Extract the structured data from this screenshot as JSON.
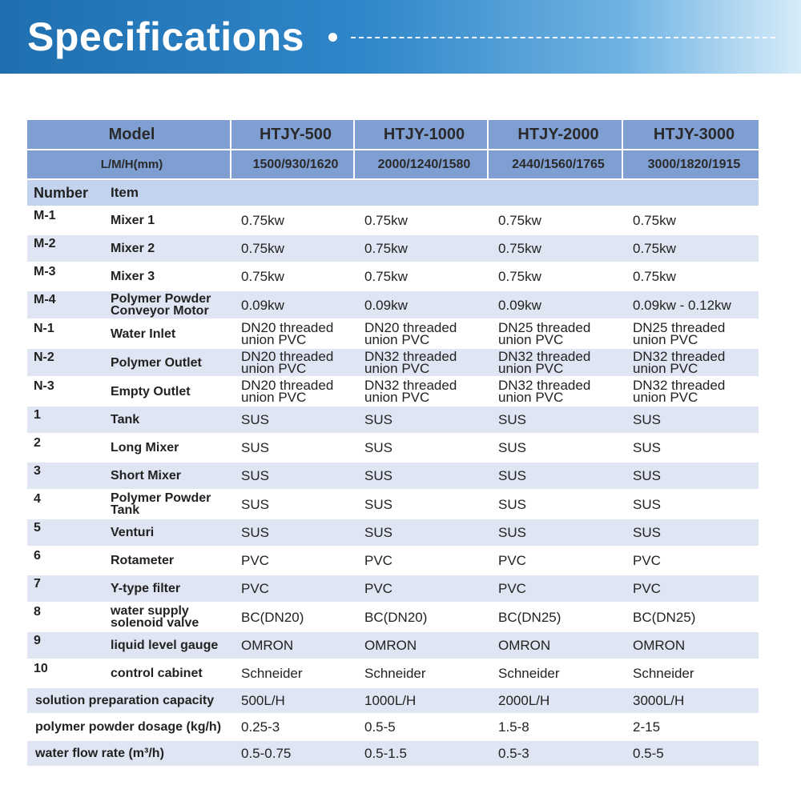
{
  "banner": {
    "title": "Specifications"
  },
  "header": {
    "model_label": "Model",
    "models": [
      "HTJY-500",
      "HTJY-1000",
      "HTJY-2000",
      "HTJY-3000"
    ],
    "lmh_label": "L/M/H(mm)",
    "lmh": [
      "1500/930/1620",
      "2000/1240/1580",
      "2440/1560/1765",
      "3000/1820/1915"
    ],
    "number_label": "Number",
    "item_label": "Item"
  },
  "rows": [
    {
      "num": "M-1",
      "item": "Mixer 1",
      "v": [
        "0.75kw",
        "0.75kw",
        "0.75kw",
        "0.75kw"
      ]
    },
    {
      "num": "M-2",
      "item": "Mixer 2",
      "v": [
        "0.75kw",
        "0.75kw",
        "0.75kw",
        "0.75kw"
      ]
    },
    {
      "num": "M-3",
      "item": "Mixer 3",
      "v": [
        "0.75kw",
        "0.75kw",
        "0.75kw",
        "0.75kw"
      ]
    },
    {
      "num": "M-4",
      "item": "Polymer Powder Conveyor Motor",
      "v": [
        "0.09kw",
        "0.09kw",
        "0.09kw",
        "0.09kw - 0.12kw"
      ]
    },
    {
      "num": "N-1",
      "item": "Water Inlet",
      "v": [
        "DN20 threaded union PVC",
        "DN20 threaded union PVC",
        "DN25 threaded union PVC",
        "DN25 threaded union PVC"
      ]
    },
    {
      "num": "N-2",
      "item": "Polymer Outlet",
      "v": [
        "DN20 threaded union PVC",
        "DN32 threaded union PVC",
        "DN32 threaded union PVC",
        "DN32 threaded union PVC"
      ]
    },
    {
      "num": "N-3",
      "item": "Empty Outlet",
      "v": [
        "DN20 threaded union PVC",
        "DN32 threaded union PVC",
        "DN32 threaded union PVC",
        "DN32 threaded union PVC"
      ]
    },
    {
      "num": "1",
      "item": "Tank",
      "v": [
        "SUS",
        "SUS",
        "SUS",
        "SUS"
      ]
    },
    {
      "num": "2",
      "item": "Long Mixer",
      "v": [
        "SUS",
        "SUS",
        "SUS",
        "SUS"
      ]
    },
    {
      "num": "3",
      "item": "Short Mixer",
      "v": [
        "SUS",
        "SUS",
        "SUS",
        "SUS"
      ]
    },
    {
      "num": "4",
      "item": "Polymer Powder Tank",
      "v": [
        "SUS",
        "SUS",
        "SUS",
        "SUS"
      ]
    },
    {
      "num": "5",
      "item": "Venturi",
      "v": [
        "SUS",
        "SUS",
        "SUS",
        "SUS"
      ]
    },
    {
      "num": "6",
      "item": "Rotameter",
      "v": [
        "PVC",
        "PVC",
        "PVC",
        "PVC"
      ]
    },
    {
      "num": "7",
      "item": "Y-type filter",
      "v": [
        "PVC",
        "PVC",
        "PVC",
        "PVC"
      ]
    },
    {
      "num": "8",
      "item": "water supply solenoid valve",
      "v": [
        "BC(DN20)",
        "BC(DN20)",
        "BC(DN25)",
        "BC(DN25)"
      ]
    },
    {
      "num": "9",
      "item": "liquid level gauge",
      "v": [
        "OMRON",
        "OMRON",
        "OMRON",
        "OMRON"
      ]
    },
    {
      "num": "10",
      "item": "control cabinet",
      "v": [
        "Schneider",
        "Schneider",
        "Schneider",
        "Schneider"
      ]
    }
  ],
  "footer_rows": [
    {
      "label": "solution preparation capacity",
      "v": [
        "500L/H",
        "1000L/H",
        "2000L/H",
        "3000L/H"
      ]
    },
    {
      "label": "polymer powder dosage (kg/h)",
      "v": [
        "0.25-3",
        "0.5-5",
        "1.5-8",
        "2-15"
      ]
    },
    {
      "label": "water flow rate (m³/h)",
      "v": [
        "0.5-0.75",
        "0.5-1.5",
        "0.5-3",
        "0.5-5"
      ]
    }
  ]
}
